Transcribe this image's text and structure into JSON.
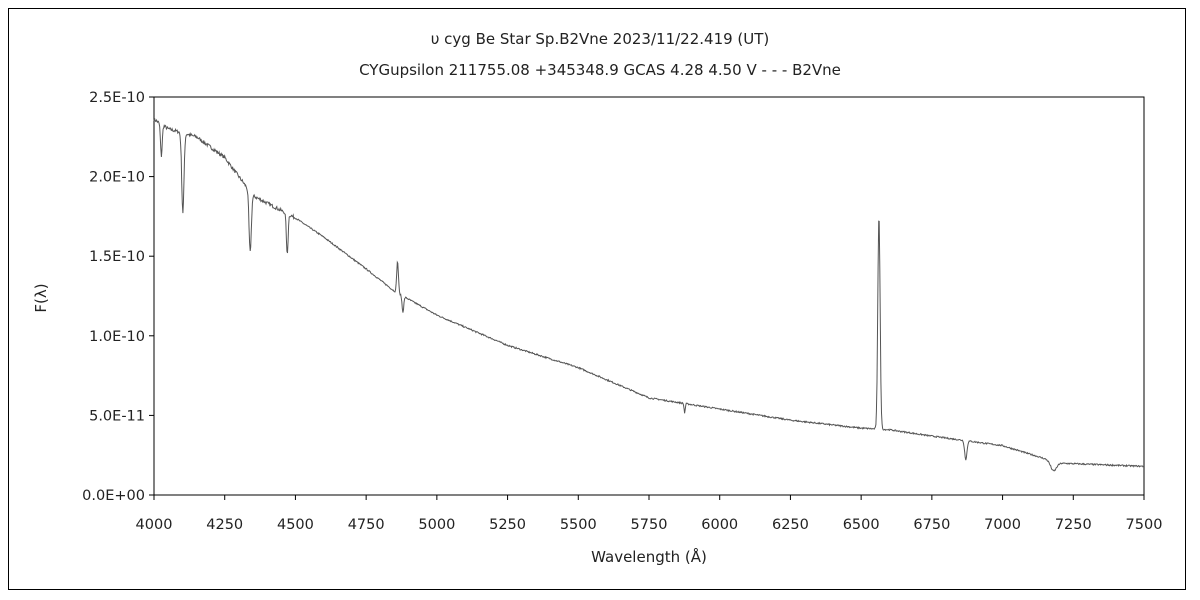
{
  "chart_data": {
    "type": "line",
    "title": "υ  cyg    Be Star    Sp.B2Vne    2023/11/22.419 (UT)",
    "subtitle": "CYGupsilon 211755.08 +345348.9 GCAS 4.28 4.50 V - - - B2Vne",
    "xlabel": "Wavelength (Å)",
    "ylabel": "F(λ)",
    "xlim": [
      4000,
      7500
    ],
    "ylim": [
      0,
      2.5e-10
    ],
    "xticks": [
      "4000",
      "4250",
      "4500",
      "4750",
      "5000",
      "5250",
      "5500",
      "5750",
      "6000",
      "6250",
      "6500",
      "6750",
      "7000",
      "7250",
      "7500"
    ],
    "yticks": [
      "0.0E+00",
      "5.0E-11",
      "1.0E-10",
      "1.5E-10",
      "2.0E-10",
      "2.5E-10"
    ],
    "grid": false,
    "colors": {
      "line": "#555555",
      "axis": "#000000"
    },
    "continuum": [
      [
        4000,
        2.36e-10
      ],
      [
        4050,
        2.3e-10
      ],
      [
        4150,
        2.25e-10
      ],
      [
        4250,
        2.12e-10
      ],
      [
        4350,
        1.88e-10
      ],
      [
        4500,
        1.74e-10
      ],
      [
        4600,
        1.62e-10
      ],
      [
        4750,
        1.42e-10
      ],
      [
        4850,
        1.28e-10
      ],
      [
        5000,
        1.13e-10
      ],
      [
        5250,
        9.4e-11
      ],
      [
        5500,
        8e-11
      ],
      [
        5750,
        6.1e-11
      ],
      [
        6000,
        5.4e-11
      ],
      [
        6250,
        4.7e-11
      ],
      [
        6500,
        4.2e-11
      ],
      [
        6600,
        4.1e-11
      ],
      [
        6750,
        3.7e-11
      ],
      [
        7000,
        3.1e-11
      ],
      [
        7200,
        2e-11
      ],
      [
        7500,
        1.8e-11
      ]
    ],
    "features": [
      {
        "center": 4026,
        "depth": -2e-11,
        "width": 3
      },
      {
        "center": 4102,
        "depth": -5e-11,
        "width": 4
      },
      {
        "center": 4340,
        "depth": -3.8e-11,
        "width": 4
      },
      {
        "center": 4471,
        "depth": -2.6e-11,
        "width": 3
      },
      {
        "center": 4861,
        "depth": 2e-11,
        "width": 3
      },
      {
        "center": 4880,
        "depth": -1e-11,
        "width": 3
      },
      {
        "center": 5876,
        "depth": -6e-12,
        "width": 2
      },
      {
        "center": 6563,
        "depth": 1.35e-10,
        "width": 4
      },
      {
        "center": 6870,
        "depth": -1.2e-11,
        "width": 4
      },
      {
        "center": 7180,
        "depth": -6e-12,
        "width": 10
      }
    ]
  }
}
